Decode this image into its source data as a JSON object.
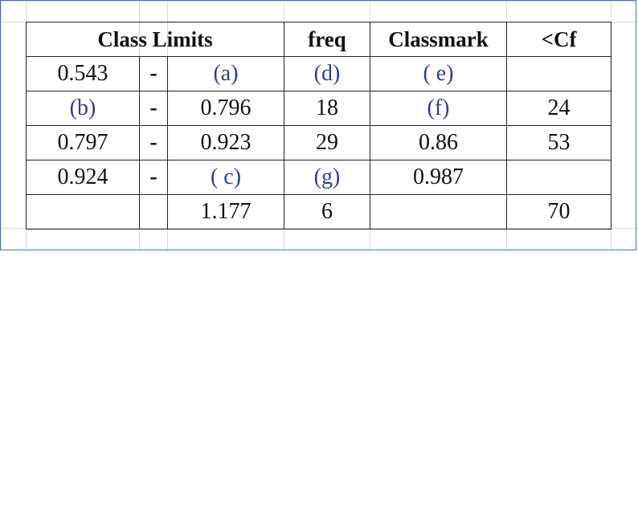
{
  "table": {
    "headers": {
      "class_limits": "Class Limits",
      "freq": "freq",
      "classmark": "Classmark",
      "cf": "<Cf"
    },
    "rows": [
      {
        "lower": "0.543",
        "sep": "-",
        "upper": "(a)",
        "freq": "(d)",
        "classmark": "( e)",
        "cf": ""
      },
      {
        "lower": "(b)",
        "sep": "-",
        "upper": "0.796",
        "freq": "18",
        "classmark": "(f)",
        "cf": "24"
      },
      {
        "lower": "0.797",
        "sep": "-",
        "upper": "0.923",
        "freq": "29",
        "classmark": "0.86",
        "cf": "53"
      },
      {
        "lower": "0.924",
        "sep": "-",
        "upper": "( c)",
        "freq": "(g)",
        "classmark": "0.987",
        "cf": ""
      },
      {
        "lower": "",
        "sep": "",
        "upper": "1.177",
        "freq": "6",
        "classmark": "",
        "cf": "70"
      }
    ],
    "placeholder_color": "#2f3f8f",
    "border_color": "#2c7fd1"
  }
}
